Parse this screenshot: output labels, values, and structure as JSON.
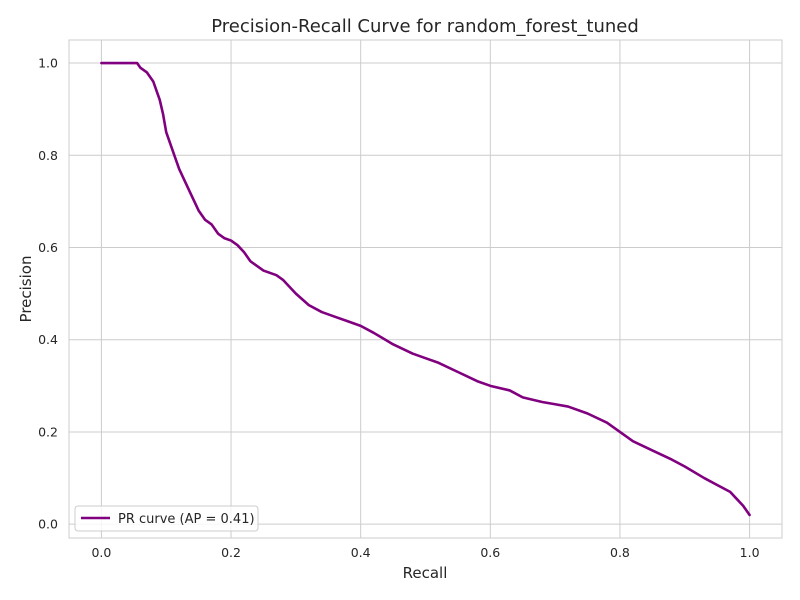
{
  "chart_data": {
    "type": "line",
    "title": "Precision-Recall Curve for random_forest_tuned",
    "xlabel": "Recall",
    "ylabel": "Precision",
    "xlim": [
      -0.05,
      1.05
    ],
    "ylim": [
      -0.03,
      1.05
    ],
    "xticks": [
      0.0,
      0.2,
      0.4,
      0.6,
      0.8,
      1.0
    ],
    "xtick_labels": [
      "0.0",
      "0.2",
      "0.4",
      "0.6",
      "0.8",
      "1.0"
    ],
    "yticks": [
      0.0,
      0.2,
      0.4,
      0.6,
      0.8,
      1.0
    ],
    "ytick_labels": [
      "0.0",
      "0.2",
      "0.4",
      "0.6",
      "0.8",
      "1.0"
    ],
    "grid": true,
    "legend_position": "lower-left",
    "series": [
      {
        "name": "PR curve (AP = 0.41)",
        "color": "#800080",
        "x": [
          0.0,
          0.02,
          0.04,
          0.055,
          0.06,
          0.07,
          0.08,
          0.085,
          0.09,
          0.095,
          0.1,
          0.11,
          0.12,
          0.13,
          0.14,
          0.15,
          0.16,
          0.17,
          0.18,
          0.19,
          0.2,
          0.21,
          0.22,
          0.23,
          0.24,
          0.25,
          0.27,
          0.28,
          0.3,
          0.32,
          0.34,
          0.36,
          0.38,
          0.4,
          0.42,
          0.45,
          0.48,
          0.5,
          0.52,
          0.55,
          0.58,
          0.6,
          0.63,
          0.65,
          0.68,
          0.7,
          0.72,
          0.75,
          0.78,
          0.8,
          0.82,
          0.85,
          0.88,
          0.9,
          0.93,
          0.95,
          0.97,
          0.98,
          0.99,
          1.0
        ],
        "y": [
          1.0,
          1.0,
          1.0,
          1.0,
          0.99,
          0.98,
          0.96,
          0.94,
          0.92,
          0.89,
          0.85,
          0.81,
          0.77,
          0.74,
          0.71,
          0.68,
          0.66,
          0.65,
          0.63,
          0.62,
          0.615,
          0.605,
          0.59,
          0.57,
          0.56,
          0.55,
          0.54,
          0.53,
          0.5,
          0.475,
          0.46,
          0.45,
          0.44,
          0.43,
          0.415,
          0.39,
          0.37,
          0.36,
          0.35,
          0.33,
          0.31,
          0.3,
          0.29,
          0.275,
          0.265,
          0.26,
          0.255,
          0.24,
          0.22,
          0.2,
          0.18,
          0.16,
          0.14,
          0.125,
          0.1,
          0.085,
          0.07,
          0.055,
          0.04,
          0.02
        ]
      }
    ]
  }
}
